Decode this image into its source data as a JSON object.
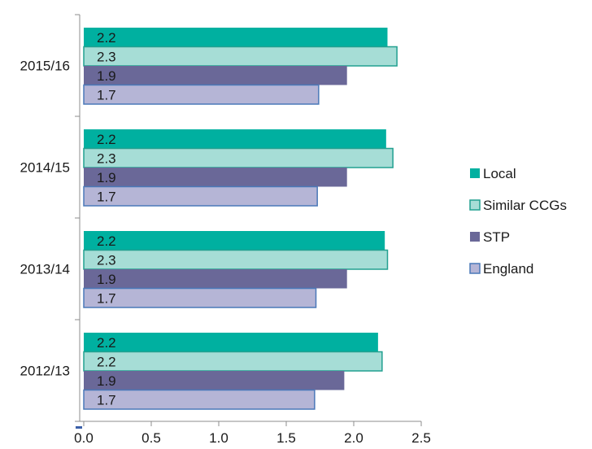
{
  "chart_data": {
    "type": "bar",
    "orientation": "horizontal",
    "categories": [
      "2015/16",
      "2014/15",
      "2013/14",
      "2012/13"
    ],
    "series": [
      {
        "name": "Local",
        "color": "#00b0a0",
        "values": [
          2.25,
          2.24,
          2.23,
          2.18
        ],
        "labels": [
          "2.2",
          "2.2",
          "2.2",
          "2.2"
        ]
      },
      {
        "name": "Similar CCGs",
        "color": "#a6ddd6",
        "values": [
          2.32,
          2.29,
          2.25,
          2.21
        ],
        "labels": [
          "2.3",
          "2.3",
          "2.3",
          "2.2"
        ]
      },
      {
        "name": "STP",
        "color": "#6a6898",
        "values": [
          1.95,
          1.95,
          1.95,
          1.93
        ],
        "labels": [
          "1.9",
          "1.9",
          "1.9",
          "1.9"
        ]
      },
      {
        "name": "England",
        "color": "#b5b5d6",
        "values": [
          1.74,
          1.73,
          1.72,
          1.71
        ],
        "labels": [
          "1.7",
          "1.7",
          "1.7",
          "1.7"
        ]
      }
    ],
    "x_ticks": [
      "0.0",
      "0.5",
      "1.0",
      "1.5",
      "2.0",
      "2.5"
    ],
    "xlim": [
      0,
      2.5
    ],
    "grid": false,
    "legend_position": "right"
  }
}
